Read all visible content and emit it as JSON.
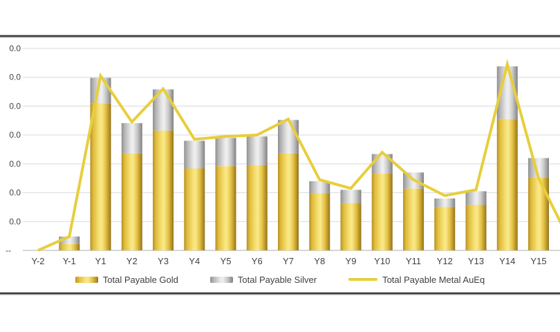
{
  "legend": {
    "items": [
      {
        "label": "Total Payable Gold",
        "swatch": "gold-bar-swatch"
      },
      {
        "label": "Total Payable Silver",
        "swatch": "silver-bar-swatch"
      },
      {
        "label": "Total Payable Metal AuEq",
        "swatch": "yellow-line-swatch"
      }
    ]
  },
  "colors": {
    "gold_bar_mid": "#e8c43a",
    "gold_bar_highlight": "#fae88a",
    "gold_bar_edge": "#8f7119",
    "silver_bar_mid": "#c0c0c0",
    "silver_bar_highlight": "#efefef",
    "silver_bar_edge": "#7f7f7f",
    "aueq_line": "#e7ce3c",
    "gridline": "#d9d9d9",
    "axis_line": "#bfbfbf",
    "text": "#404040",
    "border_rule": "#3f3f3f",
    "background": "#ffffff"
  },
  "chart_data": {
    "type": "bar",
    "subtype": "stacked-bar-with-line-overlay",
    "categories": [
      "Y-2",
      "Y-1",
      "Y1",
      "Y2",
      "Y3",
      "Y4",
      "Y5",
      "Y6",
      "Y7",
      "Y8",
      "Y9",
      "Y10",
      "Y11",
      "Y12",
      "Y13",
      "Y14",
      "Y15"
    ],
    "series": [
      {
        "name": "Total Payable Gold",
        "type": "bar",
        "stacked": true,
        "values": [
          0,
          22,
          510,
          336,
          415,
          284,
          292,
          295,
          336,
          198,
          164,
          266,
          214,
          150,
          158,
          455,
          252
        ]
      },
      {
        "name": "Total Payable Silver",
        "type": "bar",
        "stacked": true,
        "values": [
          0,
          26,
          88,
          105,
          143,
          96,
          98,
          100,
          116,
          42,
          46,
          68,
          56,
          30,
          47,
          183,
          68
        ]
      },
      {
        "name": "Total Payable Metal AuEq",
        "type": "line",
        "values": [
          0,
          48,
          605,
          445,
          560,
          385,
          395,
          400,
          455,
          245,
          215,
          340,
          245,
          190,
          210,
          645,
          250
        ]
      }
    ],
    "title": "",
    "xlabel": "",
    "ylabel": "",
    "ylim": [
      0,
      700
    ],
    "grid": "horizontal, every 100 units",
    "legend_position": "bottom-center",
    "ytick_labels_visible": [
      "0.0",
      "0.0",
      "0.0",
      "0.0",
      "0.0",
      "0.0",
      "0.0",
      "--"
    ],
    "ytick_note": "y-axis tick labels are cut off at the left edge of the image; only the trailing 0.0 of each value is visible, and the zero tick renders as --",
    "line_runout_value_at_right_edge": 82,
    "line_runout_note": "AuEq line continues descending past Y15 and runs off the right edge of the image"
  }
}
